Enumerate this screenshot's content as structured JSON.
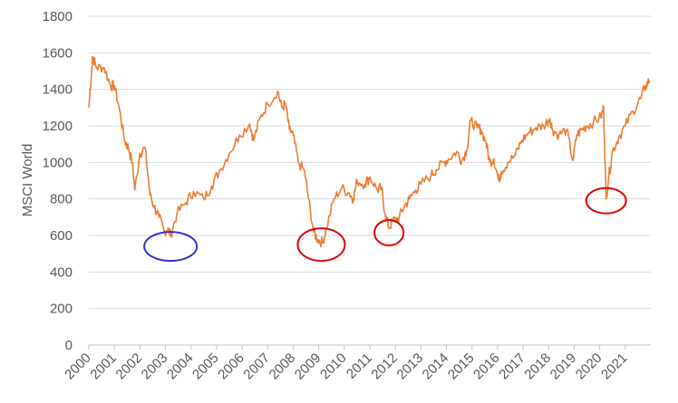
{
  "chart_data": {
    "type": "line",
    "title": "",
    "xlabel": "",
    "ylabel": "MSCI World",
    "ylim": [
      0,
      1800
    ],
    "yticks": [
      0,
      200,
      400,
      600,
      800,
      1000,
      1200,
      1400,
      1600,
      1800
    ],
    "xlim": [
      2000,
      2022
    ],
    "xticks": [
      "2000",
      "2001",
      "2002",
      "2003",
      "2004",
      "2005",
      "2006",
      "2007",
      "2008",
      "2009",
      "2010",
      "2011",
      "2012",
      "2013",
      "2014",
      "2015",
      "2016",
      "2017",
      "2018",
      "2019",
      "2020",
      "2021"
    ],
    "grid": "horizontal",
    "legend": "none",
    "colors": {
      "line": "#ED7D31",
      "grid": "#D9D9D9",
      "axis": "#BFBFBF",
      "circle_blue": "#3333CC",
      "circle_red": "#E00000"
    },
    "series": [
      {
        "x": [
          2000.0,
          2000.15,
          2000.3,
          2000.6,
          2000.85,
          2001.0,
          2001.2,
          2001.4,
          2001.55,
          2001.7,
          2001.8,
          2002.0,
          2002.2,
          2002.4,
          2002.55,
          2002.75,
          2002.95,
          2003.1,
          2003.2,
          2003.45,
          2003.8,
          2004.1,
          2004.5,
          2004.8,
          2005.1,
          2005.5,
          2005.9,
          2006.3,
          2006.45,
          2006.7,
          2007.0,
          2007.4,
          2007.55,
          2007.7,
          2007.85,
          2008.0,
          2008.2,
          2008.45,
          2008.6,
          2008.8,
          2008.95,
          2009.15,
          2009.3,
          2009.6,
          2009.9,
          2010.2,
          2010.35,
          2010.5,
          2010.8,
          2011.0,
          2011.3,
          2011.45,
          2011.6,
          2011.75,
          2011.9,
          2012.15,
          2012.35,
          2012.55,
          2012.8,
          2013.0,
          2013.4,
          2013.6,
          2013.9,
          2014.1,
          2014.4,
          2014.6,
          2014.8,
          2014.95,
          2015.2,
          2015.35,
          2015.55,
          2015.7,
          2015.85,
          2016.05,
          2016.15,
          2016.4,
          2016.7,
          2016.95,
          2017.2,
          2017.5,
          2017.8,
          2018.05,
          2018.15,
          2018.4,
          2018.7,
          2018.95,
          2019.1,
          2019.3,
          2019.5,
          2019.75,
          2020.05,
          2020.15,
          2020.25,
          2020.35,
          2020.5,
          2020.75,
          2021.0,
          2021.3,
          2021.6,
          2021.8,
          2021.95
        ],
        "y": [
          1300,
          1580,
          1520,
          1520,
          1420,
          1420,
          1290,
          1120,
          1080,
          1000,
          850,
          1050,
          1080,
          820,
          760,
          700,
          620,
          640,
          600,
          720,
          780,
          840,
          800,
          870,
          950,
          1050,
          1150,
          1210,
          1120,
          1240,
          1320,
          1390,
          1300,
          1320,
          1180,
          1150,
          1000,
          950,
          800,
          620,
          580,
          560,
          640,
          800,
          860,
          830,
          800,
          900,
          880,
          920,
          850,
          860,
          720,
          640,
          680,
          700,
          760,
          800,
          850,
          880,
          930,
          960,
          1000,
          1020,
          1060,
          1010,
          1070,
          1230,
          1190,
          1180,
          1110,
          1000,
          1020,
          900,
          950,
          1000,
          1040,
          1120,
          1160,
          1190,
          1200,
          1240,
          1180,
          1150,
          1180,
          1010,
          1150,
          1180,
          1200,
          1220,
          1250,
          1300,
          800,
          920,
          1060,
          1140,
          1200,
          1280,
          1350,
          1420,
          1450
        ]
      }
    ],
    "annotations": [
      {
        "shape": "ellipse",
        "color": "blue",
        "x": 2003.2,
        "y": 540
      },
      {
        "shape": "ellipse",
        "color": "red",
        "x": 2009.1,
        "y": 550
      },
      {
        "shape": "ellipse",
        "color": "red",
        "x": 2011.75,
        "y": 615
      },
      {
        "shape": "ellipse",
        "color": "red",
        "x": 2020.25,
        "y": 790
      }
    ]
  }
}
